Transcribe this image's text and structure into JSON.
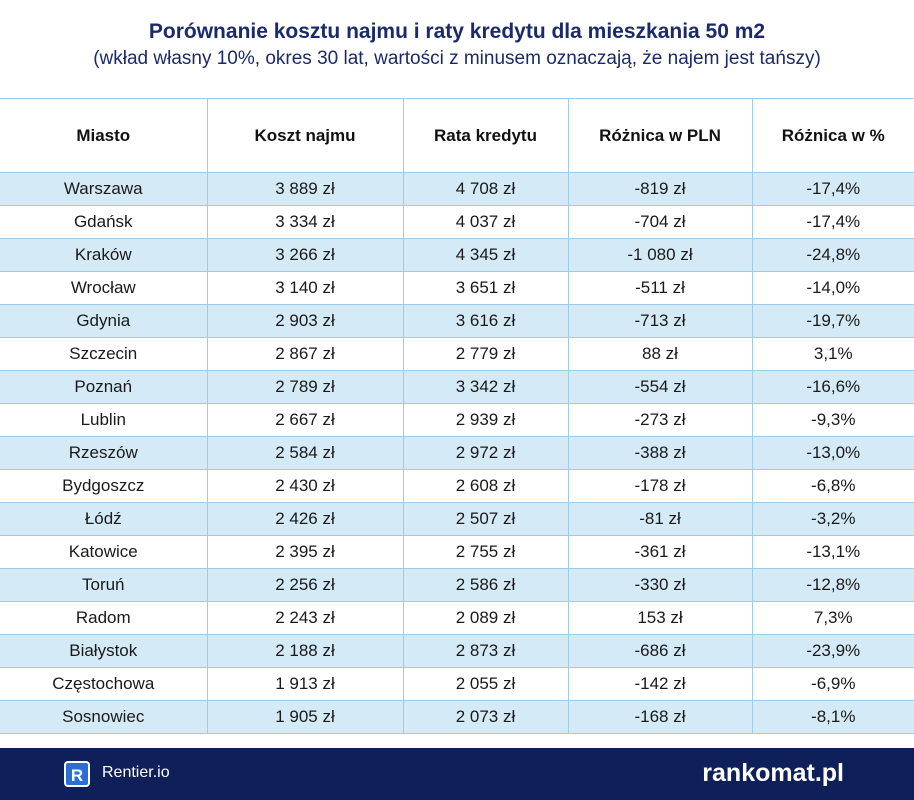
{
  "header": {
    "title": "Porównanie kosztu najmu i raty kredytu dla mieszkania 50 m2",
    "subtitle": "(wkład własny 10%, okres 30 lat, wartości z minusem oznaczają, że najem jest tańszy)"
  },
  "table": {
    "columns": [
      "Miasto",
      "Koszt najmu",
      "Rata kredytu",
      "Różnica w PLN",
      "Różnica w %"
    ],
    "rows": [
      [
        "Warszawa",
        "3 889 zł",
        "4 708 zł",
        "-819 zł",
        "-17,4%"
      ],
      [
        "Gdańsk",
        "3 334 zł",
        "4 037 zł",
        "-704 zł",
        "-17,4%"
      ],
      [
        "Kraków",
        "3 266 zł",
        "4 345 zł",
        "-1 080 zł",
        "-24,8%"
      ],
      [
        "Wrocław",
        "3 140 zł",
        "3 651 zł",
        "-511 zł",
        "-14,0%"
      ],
      [
        "Gdynia",
        "2 903 zł",
        "3 616 zł",
        "-713 zł",
        "-19,7%"
      ],
      [
        "Szczecin",
        "2 867 zł",
        "2 779 zł",
        "88 zł",
        "3,1%"
      ],
      [
        "Poznań",
        "2 789 zł",
        "3 342 zł",
        "-554 zł",
        "-16,6%"
      ],
      [
        "Lublin",
        "2 667 zł",
        "2 939 zł",
        "-273 zł",
        "-9,3%"
      ],
      [
        "Rzeszów",
        "2 584 zł",
        "2 972 zł",
        "-388 zł",
        "-13,0%"
      ],
      [
        "Bydgoszcz",
        "2 430 zł",
        "2 608 zł",
        "-178 zł",
        "-6,8%"
      ],
      [
        "Łódź",
        "2 426 zł",
        "2 507 zł",
        "-81 zł",
        "-3,2%"
      ],
      [
        "Katowice",
        "2 395 zł",
        "2 755 zł",
        "-361 zł",
        "-13,1%"
      ],
      [
        "Toruń",
        "2 256 zł",
        "2 586 zł",
        "-330 zł",
        "-12,8%"
      ],
      [
        "Radom",
        "2 243 zł",
        "2 089 zł",
        "153 zł",
        "7,3%"
      ],
      [
        "Białystok",
        "2 188 zł",
        "2 873 zł",
        "-686 zł",
        "-23,9%"
      ],
      [
        "Częstochowa",
        "1 913 zł",
        "2 055 zł",
        "-142 zł",
        "-6,9%"
      ],
      [
        "Sosnowiec",
        "1 905 zł",
        "2 073 zł",
        "-168 zł",
        "-8,1%"
      ]
    ]
  },
  "footer": {
    "logo_letter": "R",
    "left": "Rentier.io",
    "right": "rankomat.pl"
  }
}
